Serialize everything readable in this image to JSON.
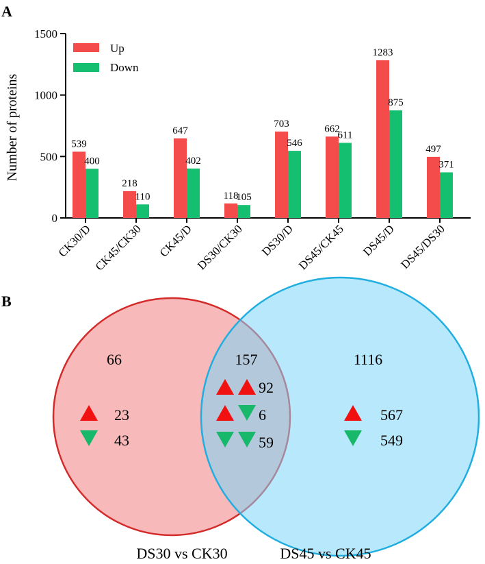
{
  "panels": {
    "a_label": "A",
    "b_label": "B"
  },
  "colors": {
    "up": "#f44b4b",
    "down": "#14c06f",
    "venn_left_fill": "#f08080",
    "venn_left_stroke": "#d42a2a",
    "venn_right_fill": "#7dd6f7",
    "venn_right_stroke": "#20aee0",
    "arrow_up": "#f21111",
    "arrow_down": "#17b86a"
  },
  "chart_data": [
    {
      "type": "bar",
      "title": "",
      "xlabel": "",
      "ylabel": "Number of proteins",
      "ylim": [
        0,
        1500
      ],
      "yticks": [
        0,
        500,
        1000,
        1500
      ],
      "legend_position": "top-left",
      "categories": [
        "CK30/D",
        "CK45/CK30",
        "CK45/D",
        "DS30/CK30",
        "DS30/D",
        "DS45/CK45",
        "DS45/D",
        "DS45/DS30"
      ],
      "series": [
        {
          "name": "Up",
          "values": [
            539,
            218,
            647,
            118,
            703,
            662,
            1283,
            497
          ]
        },
        {
          "name": "Down",
          "values": [
            400,
            110,
            402,
            105,
            546,
            611,
            875,
            371
          ]
        }
      ]
    },
    {
      "type": "venn",
      "sets": [
        {
          "name": "DS30 vs CK30",
          "only_total": "66",
          "up": "23",
          "down": "43"
        },
        {
          "name": "DS45 vs CK45",
          "only_total": "1116",
          "up": "567",
          "down": "549"
        }
      ],
      "intersection": {
        "total": "157",
        "up_up": "92",
        "up_down": "6",
        "down_down": "59"
      }
    }
  ]
}
